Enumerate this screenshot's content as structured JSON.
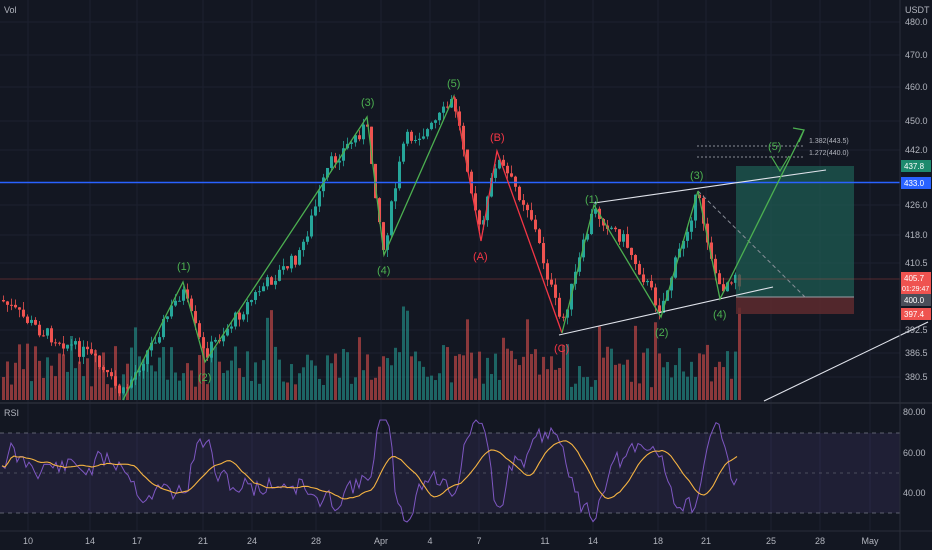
{
  "chart_data": {
    "type": "candlestick",
    "symbol_pane_label": "Vol",
    "currency": "USDT",
    "price_axis": {
      "ticks": [
        "480.0",
        "470.0",
        "460.0",
        "450.0",
        "442.0",
        "426.0",
        "418.0",
        "410.5",
        "392.5",
        "386.5",
        "380.5"
      ]
    },
    "time_axis": {
      "ticks": [
        "10",
        "14",
        "17",
        "21",
        "24",
        "28",
        "Apr",
        "4",
        "7",
        "11",
        "14",
        "18",
        "21",
        "25",
        "28",
        "May"
      ]
    },
    "price_labels": {
      "upper_box": "437.8",
      "hline": "433.0",
      "current": "405.7",
      "countdown": "01:29:47",
      "lower_box": "400.0",
      "stop": "397.4"
    },
    "fib_levels": [
      "1.382(443.5)",
      "1.272(440.0)"
    ],
    "rsi": {
      "label": "RSI",
      "ticks": [
        "80.00",
        "60.00",
        "40.00"
      ]
    },
    "wave_labels": {
      "green": [
        "(1)",
        "(2)",
        "(3)",
        "(4)",
        "(5)",
        "(1)",
        "(2)",
        "(3)",
        "(4)",
        "(5)"
      ],
      "red": [
        "(A)",
        "(B)",
        "(C)"
      ]
    },
    "colors": {
      "background": "#131722",
      "up": "#26a69a",
      "down": "#ef5350",
      "wave_green": "#4caf50",
      "wave_red": "#f23645",
      "hline": "#2962ff",
      "rsi_line": "#7e57c2",
      "rsi_ma": "#f5b342",
      "target_box": "#1e5b51",
      "stop_box": "#5e2a2e"
    }
  }
}
